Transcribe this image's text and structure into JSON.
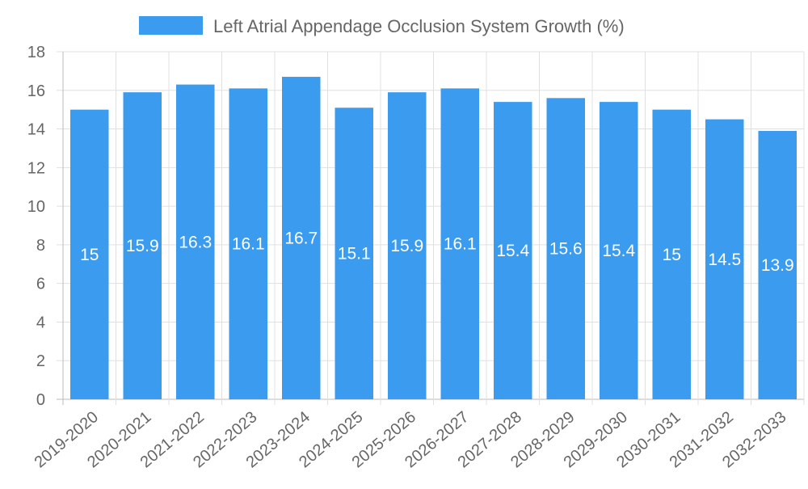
{
  "chart_data": {
    "type": "bar",
    "title": "",
    "legend": {
      "label": "Left Atrial Appendage Occlusion System Growth (%)",
      "placement": "top-center"
    },
    "categories": [
      "2019-2020",
      "2020-2021",
      "2021-2022",
      "2022-2023",
      "2023-2024",
      "2024-2025",
      "2025-2026",
      "2026-2027",
      "2027-2028",
      "2028-2029",
      "2029-2030",
      "2030-2031",
      "2031-2032",
      "2032-2033"
    ],
    "values": [
      15,
      15.9,
      16.3,
      16.1,
      16.7,
      15.1,
      15.9,
      16.1,
      15.4,
      15.6,
      15.4,
      15,
      14.5,
      13.9
    ],
    "xlabel": "",
    "ylabel": "",
    "ylim": [
      0,
      18
    ],
    "yticks": [
      0,
      2,
      4,
      6,
      8,
      10,
      12,
      14,
      16,
      18
    ],
    "grid": true,
    "bar_color": "#3a9bef"
  }
}
